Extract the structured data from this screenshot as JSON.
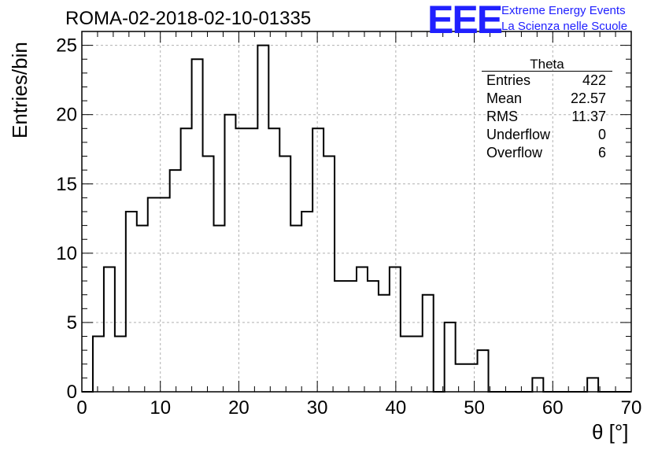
{
  "header": {
    "title": "ROMA-02-2018-02-10-01335",
    "brand_logo": "EEE",
    "brand_line1": "Extreme Energy Events",
    "brand_line2": "La Scienza nelle Scuole"
  },
  "stats_box": {
    "title": "Theta",
    "rows": [
      {
        "key": "Entries",
        "value": "422"
      },
      {
        "key": "Mean",
        "value": "22.57"
      },
      {
        "key": "RMS",
        "value": "11.37"
      },
      {
        "key": "Underflow",
        "value": "0"
      },
      {
        "key": "Overflow",
        "value": "6"
      }
    ]
  },
  "chart_data": {
    "type": "bar",
    "style": "step-histogram",
    "xlabel": "θ [°]",
    "ylabel": "Entries/bin",
    "xlim": [
      0,
      70
    ],
    "ylim": [
      0,
      26
    ],
    "xticks": [
      0,
      10,
      20,
      30,
      40,
      50,
      60,
      70
    ],
    "yticks": [
      0,
      5,
      10,
      15,
      20,
      25
    ],
    "grid": true,
    "bin_edges_start": 0,
    "bin_width": 1.4,
    "values": [
      0,
      4,
      9,
      4,
      13,
      12,
      14,
      14,
      16,
      19,
      24,
      17,
      12,
      20,
      19,
      19,
      25,
      19,
      17,
      12,
      13,
      19,
      17,
      8,
      8,
      9,
      8,
      7,
      9,
      4,
      4,
      7,
      0,
      5,
      2,
      2,
      3,
      0,
      0,
      0,
      0,
      1,
      0,
      0,
      0,
      0,
      1,
      0,
      0,
      0
    ],
    "line_color": "#000000",
    "grid_color": "#b0b0b0"
  }
}
